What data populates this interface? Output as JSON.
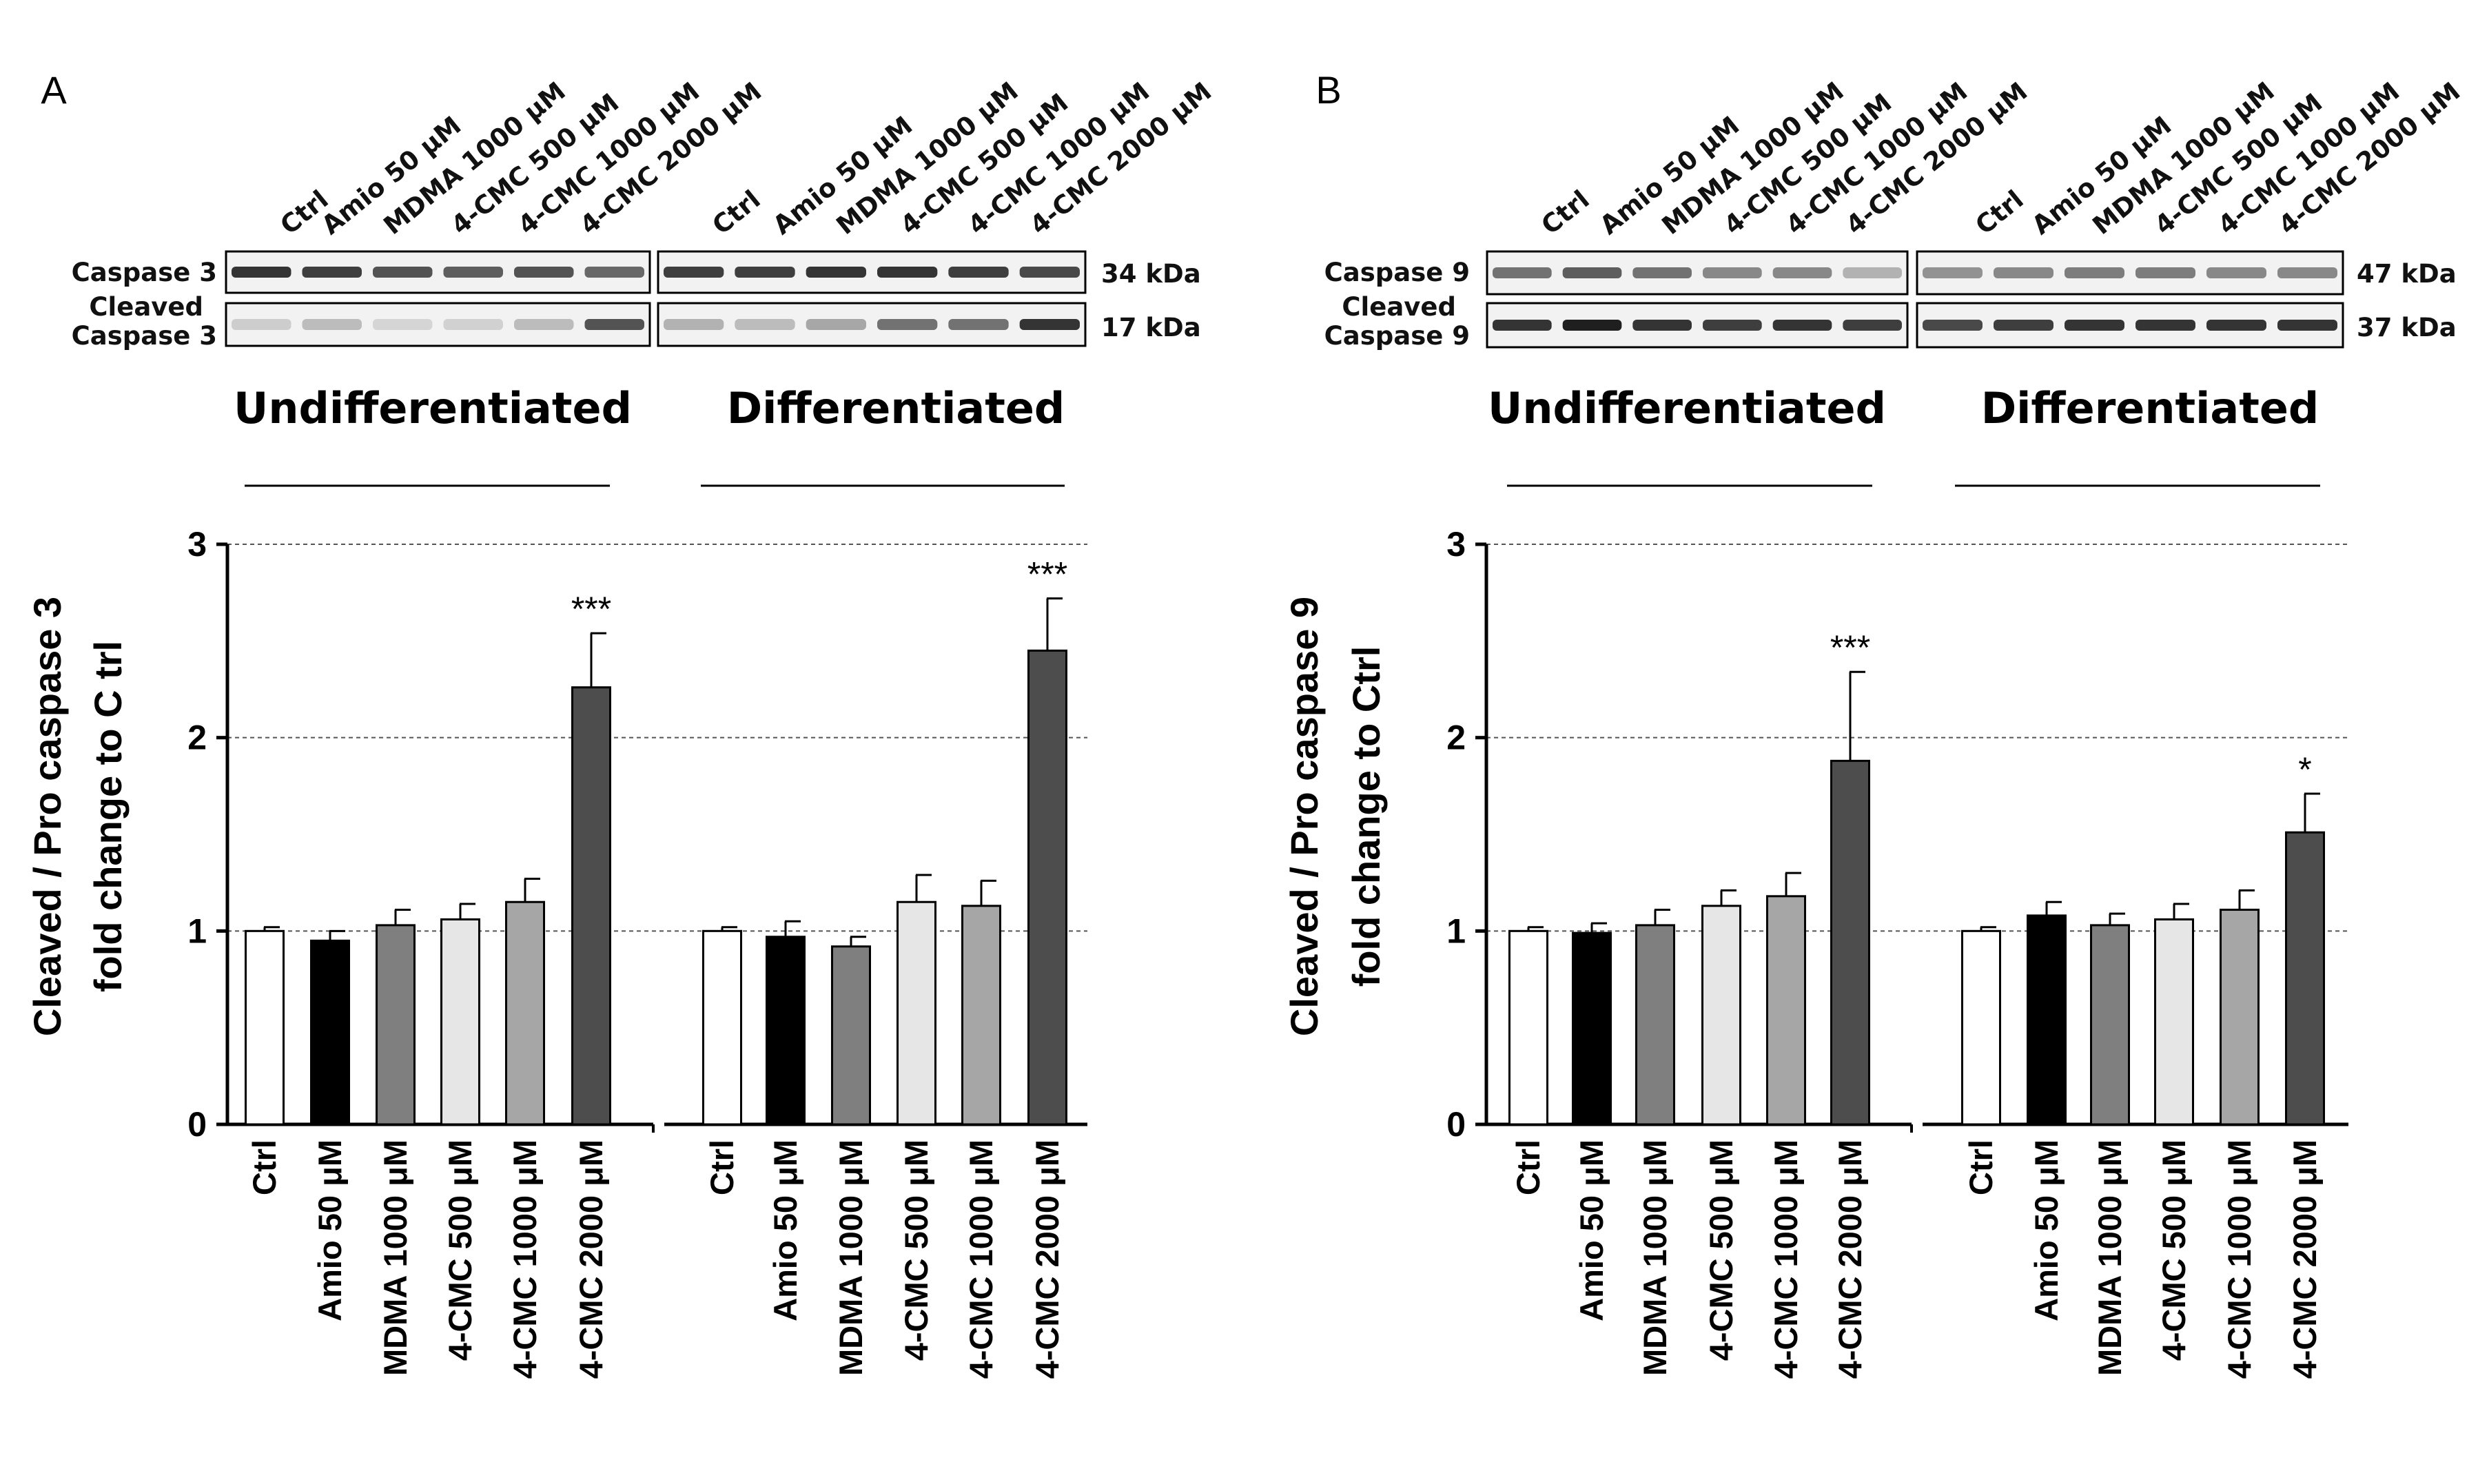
{
  "chart_data": [
    {
      "type": "bar",
      "panel": "A",
      "blot": {
        "pro_label": "Caspase 3",
        "cleaved_label_lines": [
          "Cleaved",
          "Caspase 3"
        ],
        "pro_kda": "34 kDa",
        "cleaved_kda": "17 kDa",
        "lanes": [
          "Ctrl",
          "Amio 50 μM",
          "MDMA 1000 μM",
          "4-CMC 500 μM",
          "4-CMC 1000 μM",
          "4-CMC 2000 μM"
        ]
      },
      "groups": [
        {
          "title": "Undifferentiated",
          "categories": [
            "Ctrl",
            "Amio 50 μM",
            "MDMA 1000 μM",
            "4-CMC 500 μM",
            "4-CMC 1000 μM",
            "4-CMC 2000 μM"
          ],
          "values": [
            1.0,
            0.95,
            1.03,
            1.06,
            1.15,
            2.26
          ],
          "errors": [
            0.02,
            0.05,
            0.08,
            0.08,
            0.12,
            0.28
          ],
          "significance": [
            "",
            "",
            "",
            "",
            "",
            "***"
          ]
        },
        {
          "title": "Differentiated",
          "categories": [
            "Ctrl",
            "Amio 50 μM",
            "MDMA 1000 μM",
            "4-CMC 500 μM",
            "4-CMC 1000 μM",
            "4-CMC 2000 μM"
          ],
          "values": [
            1.0,
            0.97,
            0.92,
            1.15,
            1.13,
            2.45
          ],
          "errors": [
            0.02,
            0.08,
            0.05,
            0.14,
            0.13,
            0.27
          ],
          "significance": [
            "",
            "",
            "",
            "",
            "",
            "***"
          ]
        }
      ],
      "ylabel_lines": [
        "Cleaved / Pro caspase 3",
        "fold change to C trl"
      ],
      "ylim": [
        0,
        3
      ],
      "yticks": [
        "0",
        "1",
        "2",
        "3"
      ],
      "grid": "dashed at 1, 2, 3"
    },
    {
      "type": "bar",
      "panel": "B",
      "blot": {
        "pro_label": "Caspase 9",
        "cleaved_label_lines": [
          "Cleaved",
          "Caspase 9"
        ],
        "pro_kda": "47 kDa",
        "cleaved_kda": "37 kDa",
        "lanes": [
          "Ctrl",
          "Amio 50 μM",
          "MDMA 1000 μM",
          "4-CMC 500 μM",
          "4-CMC 1000 μM",
          "4-CMC 2000 μM"
        ]
      },
      "groups": [
        {
          "title": "Undifferentiated",
          "categories": [
            "Ctrl",
            "Amio 50 μM",
            "MDMA 1000 μM",
            "4-CMC 500 μM",
            "4-CMC 1000 μM",
            "4-CMC 2000 μM"
          ],
          "values": [
            1.0,
            0.99,
            1.03,
            1.13,
            1.18,
            1.88
          ],
          "errors": [
            0.02,
            0.05,
            0.08,
            0.08,
            0.12,
            0.46
          ],
          "significance": [
            "",
            "",
            "",
            "",
            "",
            "***"
          ]
        },
        {
          "title": "Differentiated",
          "categories": [
            "Ctrl",
            "Amio 50 μM",
            "MDMA 1000 μM",
            "4-CMC 500 μM",
            "4-CMC 1000 μM",
            "4-CMC 2000 μM"
          ],
          "values": [
            1.0,
            1.08,
            1.03,
            1.06,
            1.11,
            1.51
          ],
          "errors": [
            0.02,
            0.07,
            0.06,
            0.08,
            0.1,
            0.2
          ],
          "significance": [
            "",
            "",
            "",
            "",
            "",
            "*"
          ]
        }
      ],
      "ylabel_lines": [
        "Cleaved / Pro caspase 9",
        "fold change to Ctrl"
      ],
      "ylim": [
        0,
        3
      ],
      "yticks": [
        "0",
        "1",
        "2",
        "3"
      ],
      "grid": "dashed at 1, 2, 3"
    }
  ],
  "colors": {
    "bar_fills": [
      "#ffffff",
      "#000000",
      "#7f7f7f",
      "#e6e6e6",
      "#a6a6a6",
      "#4d4d4d"
    ],
    "bar_stroke": "#000000",
    "gridline": "#555555",
    "band": "#1a1a1a"
  }
}
